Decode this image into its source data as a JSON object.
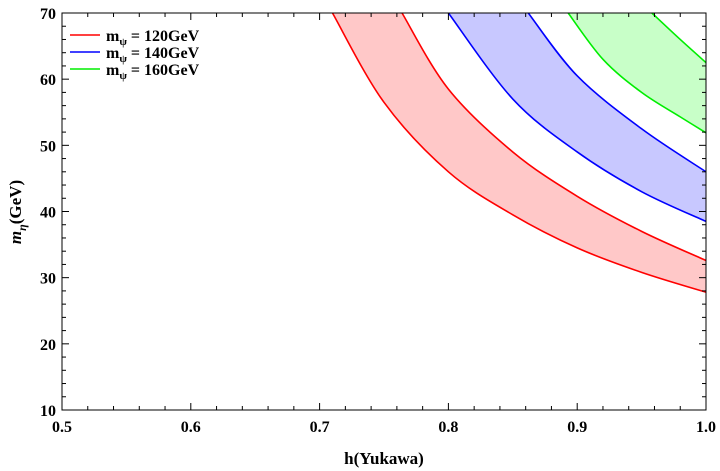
{
  "chart_data": {
    "type": "area",
    "title": "",
    "xlabel": "h(Yukawa)",
    "ylabel_main": "m",
    "ylabel_sub": "η",
    "ylabel_unit": "(GeV)",
    "xlim": [
      0.5,
      1.0
    ],
    "ylim": [
      10,
      70
    ],
    "xticks": [
      "0.5",
      "0.6",
      "0.7",
      "0.8",
      "0.9",
      "1.0"
    ],
    "xtick_values": [
      0.5,
      0.6,
      0.7,
      0.8,
      0.9,
      1.0
    ],
    "yticks": [
      "10",
      "20",
      "30",
      "40",
      "50",
      "60",
      "70"
    ],
    "ytick_values": [
      10,
      20,
      30,
      40,
      50,
      60,
      70
    ],
    "grid": false,
    "legend_position": "top-left",
    "series": [
      {
        "name": "m_ψ = 120GeV",
        "legend_main": "m",
        "legend_sub": "ψ",
        "legend_rest": " = 120GeV",
        "line_color": "#ff0000",
        "fill_color": "#ffc8c8",
        "lower_boundary": {
          "x": [
            0.71,
            0.75,
            0.8,
            0.85,
            0.9,
            0.95,
            1.0
          ],
          "y": [
            70,
            56.5,
            46.0,
            39.5,
            34.5,
            30.8,
            27.8
          ]
        },
        "upper_boundary": {
          "x": [
            0.764,
            0.8,
            0.85,
            0.9,
            0.95,
            1.0
          ],
          "y": [
            70,
            58.5,
            49.0,
            42.3,
            37.0,
            32.6
          ]
        }
      },
      {
        "name": "m_ψ = 140GeV",
        "legend_main": "m",
        "legend_sub": "ψ",
        "legend_rest": " = 140GeV",
        "line_color": "#0000ff",
        "fill_color": "#c8c8ff",
        "lower_boundary": {
          "x": [
            0.8,
            0.85,
            0.9,
            0.95,
            1.0
          ],
          "y": [
            70,
            57.0,
            49.0,
            43.0,
            38.5
          ]
        },
        "upper_boundary": {
          "x": [
            0.862,
            0.9,
            0.95,
            1.0
          ],
          "y": [
            70,
            60.5,
            52.5,
            46.0
          ]
        }
      },
      {
        "name": "m_ψ = 160GeV",
        "legend_main": "m",
        "legend_sub": "ψ",
        "legend_rest": " = 160GeV",
        "line_color": "#00ee00",
        "fill_color": "#c8ffc8",
        "lower_boundary": {
          "x": [
            0.893,
            0.92,
            0.95,
            0.98,
            1.0
          ],
          "y": [
            70,
            63.0,
            58.0,
            54.3,
            51.9
          ]
        },
        "upper_boundary": {
          "x": [
            0.958,
            0.98,
            1.0
          ],
          "y": [
            70,
            66.0,
            62.5
          ]
        }
      }
    ]
  }
}
